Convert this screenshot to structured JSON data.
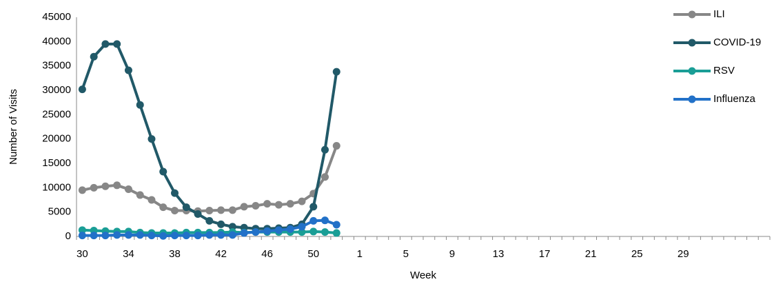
{
  "chart_data": {
    "type": "line",
    "y_label": "Number of Visits",
    "x_label": "Week",
    "categories": [
      "30",
      null,
      null,
      null,
      "34",
      null,
      null,
      null,
      "38",
      null,
      null,
      null,
      "42",
      null,
      null,
      null,
      "46",
      null,
      null,
      null,
      "50",
      null,
      null,
      null,
      "1",
      null,
      null,
      null,
      "5",
      null,
      null,
      null,
      "9",
      null,
      null,
      null,
      "13",
      null,
      null,
      null,
      "17",
      null,
      null,
      null,
      "21",
      null,
      null,
      null,
      "25",
      null,
      null,
      null,
      "29",
      null,
      null,
      null,
      null,
      null,
      null,
      null
    ],
    "ylim": [
      0,
      45000
    ],
    "yticks": [
      0,
      5000,
      10000,
      15000,
      20000,
      25000,
      30000,
      35000,
      40000,
      45000
    ],
    "grid": false,
    "legend": "right",
    "series": [
      {
        "name": "ILI",
        "color": "#878787",
        "values": [
          9500,
          10000,
          10300,
          10500,
          9700,
          8500,
          7500,
          6000,
          5300,
          5300,
          5200,
          5300,
          5400,
          5400,
          6100,
          6300,
          6700,
          6500,
          6700,
          7200,
          8800,
          12200,
          18600,
          null,
          null,
          null,
          null,
          null,
          null,
          null,
          null,
          null,
          null,
          null,
          null,
          null,
          null,
          null,
          null,
          null,
          null,
          null,
          null,
          null,
          null,
          null,
          null,
          null,
          null,
          null,
          null,
          null,
          null,
          null,
          null,
          null,
          null,
          null,
          null,
          null
        ]
      },
      {
        "name": "COVID-19",
        "color": "#215968",
        "values": [
          30200,
          36900,
          39500,
          39500,
          34100,
          27000,
          20000,
          13300,
          8900,
          6000,
          4600,
          3200,
          2500,
          2000,
          1800,
          1600,
          1600,
          1700,
          1800,
          2500,
          6100,
          17800,
          33800,
          null,
          null,
          null,
          null,
          null,
          null,
          null,
          null,
          null,
          null,
          null,
          null,
          null,
          null,
          null,
          null,
          null,
          null,
          null,
          null,
          null,
          null,
          null,
          null,
          null,
          null,
          null,
          null,
          null,
          null,
          null,
          null,
          null,
          null,
          null,
          null,
          null
        ]
      },
      {
        "name": "RSV",
        "color": "#1a9e96",
        "values": [
          1300,
          1200,
          1100,
          1000,
          1000,
          800,
          700,
          700,
          700,
          800,
          800,
          800,
          800,
          900,
          800,
          900,
          900,
          900,
          900,
          900,
          1000,
          900,
          700,
          null,
          null,
          null,
          null,
          null,
          null,
          null,
          null,
          null,
          null,
          null,
          null,
          null,
          null,
          null,
          null,
          null,
          null,
          null,
          null,
          null,
          null,
          null,
          null,
          null,
          null,
          null,
          null,
          null,
          null,
          null,
          null,
          null,
          null,
          null,
          null,
          null
        ]
      },
      {
        "name": "Influenza",
        "color": "#2271c8",
        "values": [
          200,
          200,
          200,
          300,
          300,
          300,
          200,
          100,
          200,
          200,
          200,
          300,
          300,
          300,
          700,
          900,
          1100,
          1300,
          1500,
          2000,
          3200,
          3300,
          2400,
          null,
          null,
          null,
          null,
          null,
          null,
          null,
          null,
          null,
          null,
          null,
          null,
          null,
          null,
          null,
          null,
          null,
          null,
          null,
          null,
          null,
          null,
          null,
          null,
          null,
          null,
          null,
          null,
          null,
          null,
          null,
          null,
          null,
          null,
          null,
          null,
          null
        ]
      }
    ]
  }
}
